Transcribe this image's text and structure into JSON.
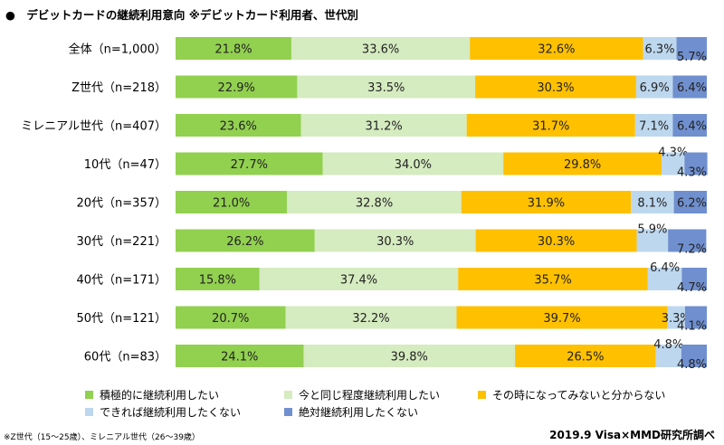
{
  "title": "●　デビットカードの継続利用意向 ※デビットカード利用者、世代別",
  "footnote": "※Z世代（15～25歳）、ミレニアル世代（26～39歳）",
  "source": "2019.9 Visa×MMD研究所調べ",
  "chart_data": {
    "type": "bar",
    "orientation": "horizontal",
    "stacked": "percent",
    "categories": [
      "全体（n=1,000）",
      "Z世代（n=218）",
      "ミレニアル世代（n=407）",
      "10代（n=47）",
      "20代（n=357）",
      "30代（n=221）",
      "40代（n=171）",
      "50代（n=121）",
      "60代（n=83）"
    ],
    "series": [
      {
        "name": "積極的に継続利用したい",
        "color": "#92d050",
        "values": [
          21.8,
          22.9,
          23.6,
          27.7,
          21.0,
          26.2,
          15.8,
          20.7,
          24.1
        ],
        "labels": [
          "21.8%",
          "22.9%",
          "23.6%",
          "27.7%",
          "21.0%",
          "26.2%",
          "15.8%",
          "20.7%",
          "24.1%"
        ]
      },
      {
        "name": "今と同じ程度継続利用したい",
        "color": "#d5ebc0",
        "values": [
          33.6,
          33.5,
          31.2,
          34.0,
          32.8,
          30.3,
          37.4,
          32.2,
          39.8
        ],
        "labels": [
          "33.6%",
          "33.5%",
          "31.2%",
          "34.0%",
          "32.8%",
          "30.3%",
          "37.4%",
          "32.2%",
          "39.8%"
        ]
      },
      {
        "name": "その時になってみないと分からない",
        "color": "#ffc000",
        "values": [
          32.6,
          30.3,
          31.7,
          29.8,
          31.9,
          30.3,
          35.7,
          39.7,
          26.5
        ],
        "labels": [
          "32.6%",
          "30.3%",
          "31.7%",
          "29.8%",
          "31.9%",
          "30.3%",
          "35.7%",
          "39.7%",
          "26.5%"
        ]
      },
      {
        "name": "できれば継続利用したくない",
        "color": "#bdd7ee",
        "values": [
          6.3,
          6.9,
          7.1,
          4.3,
          8.1,
          5.9,
          6.4,
          3.3,
          4.8
        ],
        "labels": [
          "6.3%",
          "6.9%",
          "7.1%",
          "4.3%",
          "8.1%",
          "5.9%",
          "6.4%",
          "3.3%",
          "4.8%"
        ]
      },
      {
        "name": "絶対継続利用したくない",
        "color": "#6f8fcf",
        "values": [
          5.7,
          6.4,
          6.4,
          4.3,
          6.2,
          7.2,
          4.7,
          4.1,
          4.8
        ],
        "labels": [
          "5.7%",
          "6.4%",
          "6.4%",
          "4.3%",
          "6.2%",
          "7.2%",
          "4.7%",
          "4.1%",
          "4.8%"
        ]
      }
    ],
    "xlim": [
      0,
      100
    ],
    "legend_position": "bottom"
  }
}
